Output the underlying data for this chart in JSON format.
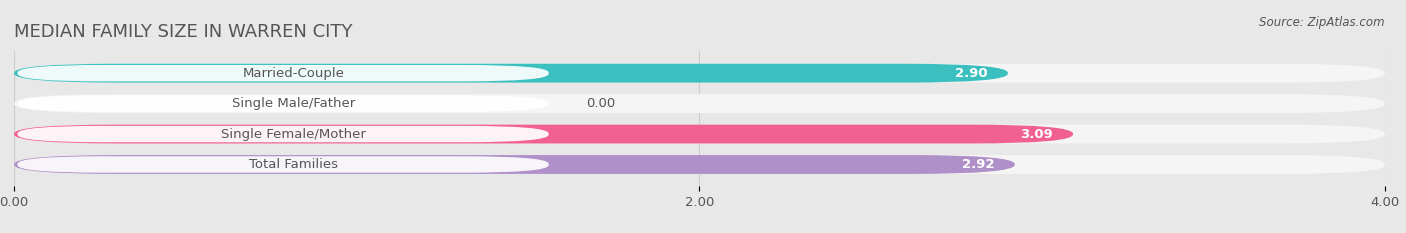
{
  "title": "MEDIAN FAMILY SIZE IN WARREN CITY",
  "source": "Source: ZipAtlas.com",
  "categories": [
    "Married-Couple",
    "Single Male/Father",
    "Single Female/Mother",
    "Total Families"
  ],
  "values": [
    2.9,
    0.0,
    3.09,
    2.92
  ],
  "bar_colors": [
    "#3bbfbf",
    "#aab8e8",
    "#f06090",
    "#b090c8"
  ],
  "xlim": [
    0,
    4.0
  ],
  "xticks": [
    0.0,
    2.0,
    4.0
  ],
  "xtick_labels": [
    "0.00",
    "2.00",
    "4.00"
  ],
  "bar_height": 0.62,
  "label_fontsize": 9.5,
  "value_fontsize": 9.5,
  "title_fontsize": 13,
  "source_fontsize": 8.5,
  "background_color": "#e8e8e8",
  "bar_background_color": "#f5f5f5",
  "label_pill_color": "#ffffff",
  "text_color": "#555555",
  "grid_color": "#cccccc"
}
